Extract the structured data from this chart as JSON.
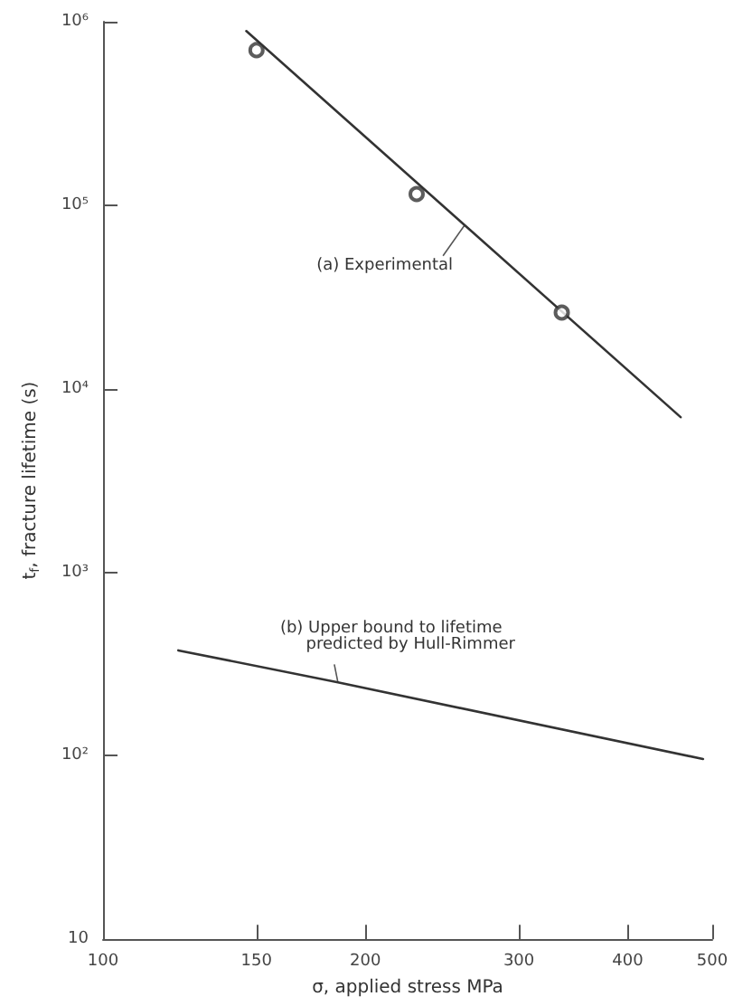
{
  "chart_data": {
    "type": "line",
    "xlabel": "σ, applied stress MPa",
    "ylabel": "t$_{f}$, fracture lifetime (s)",
    "log": "xy",
    "xlim": [
      100,
      500
    ],
    "ylim": [
      10,
      1000000
    ],
    "xticks": [
      100,
      150,
      200,
      300,
      400,
      500
    ],
    "yticks": [
      10,
      {
        "value": 100,
        "label": "10²"
      },
      {
        "value": 1000,
        "label": "10³"
      },
      {
        "value": 10000,
        "label": "10⁴"
      },
      {
        "value": 100000,
        "label": "10⁵"
      },
      {
        "value": 1000000,
        "label": "10⁶"
      }
    ],
    "grid": false,
    "series": [
      {
        "type": "line",
        "color": "#333333",
        "x": [
          146,
          460
        ],
        "values": [
          890000,
          7000
        ],
        "marker": "none"
      },
      {
        "type": "scatter",
        "color": "#333333",
        "x": [
          150,
          229,
          336
        ],
        "values": [
          700000,
          115000,
          26000
        ],
        "marker": "circle"
      },
      {
        "type": "line",
        "color": "#333333",
        "x": [
          122,
          186,
          488
        ],
        "values": [
          375,
          251,
          96
        ],
        "marker": "none"
      }
    ],
    "annotations": [
      {
        "text": "(a) Experimental",
        "x": 260,
        "y": 78000
      },
      {
        "text": "(b) Upper bound to lifetime\n     predicted by Hull-Rimmer",
        "x": 186,
        "y": 251
      }
    ]
  }
}
